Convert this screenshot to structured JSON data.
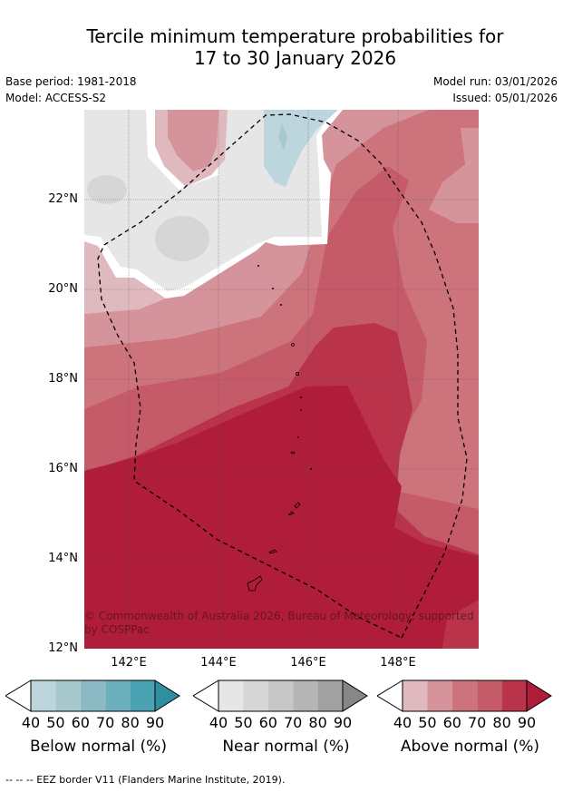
{
  "title_line1": "Tercile minimum temperature probabilities for",
  "title_line2": "17 to 30 January 2026",
  "base_period": "Base period: 1981-2018",
  "model": "Model: ACCESS-S2",
  "model_run": "Model run: 03/01/2026",
  "issued": "Issued: 05/01/2026",
  "lat_labels": [
    "22°N",
    "20°N",
    "18°N",
    "16°N",
    "14°N",
    "12°N"
  ],
  "lon_labels": [
    "142°E",
    "144°E",
    "146°E",
    "148°E"
  ],
  "copyright": "© Commonwealth of Australia 2026, Bureau of Meteorology, supported by COSPPac",
  "colorbars": [
    {
      "label": "Below normal (%)",
      "ticks": [
        "40",
        "50",
        "60",
        "70",
        "80",
        "90"
      ],
      "colors": [
        "#ffffff",
        "#bdd5dc",
        "#a6c8cd",
        "#8bbac5",
        "#6cafbd",
        "#4aa2b2",
        "#2f8fa2"
      ]
    },
    {
      "label": "Near normal (%)",
      "ticks": [
        "40",
        "50",
        "60",
        "70",
        "80",
        "90"
      ],
      "colors": [
        "#ffffff",
        "#e6e6e6",
        "#d6d6d6",
        "#c7c7c7",
        "#b5b5b5",
        "#a1a1a1",
        "#878787"
      ]
    },
    {
      "label": "Above normal (%)",
      "ticks": [
        "40",
        "50",
        "60",
        "70",
        "80",
        "90"
      ],
      "colors": [
        "#ffffff",
        "#e0b9bf",
        "#d5949b",
        "#cc737c",
        "#c55b69",
        "#b9344a",
        "#b01d3a"
      ]
    }
  ],
  "footnote": "--  --  -- EEZ border V11 (Flanders Marine Institute, 2019)."
}
